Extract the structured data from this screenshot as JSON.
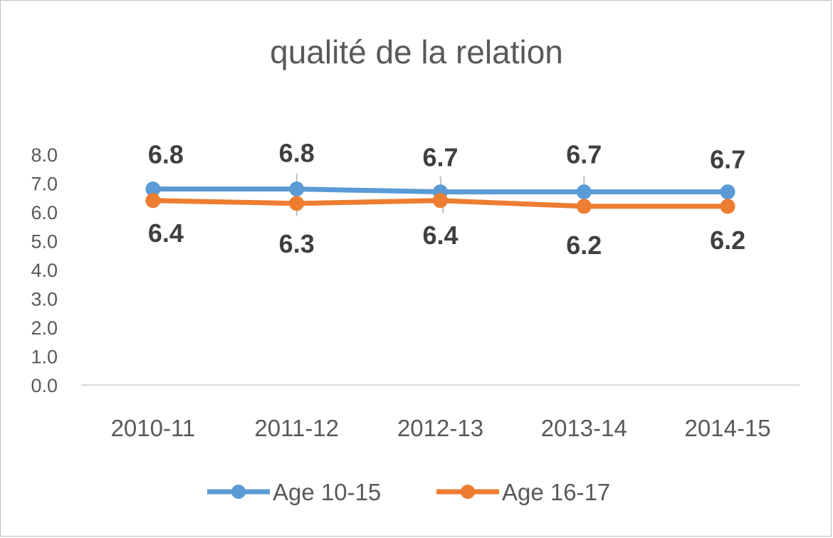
{
  "chart_data": {
    "type": "line",
    "title": "qualité de la relation",
    "categories": [
      "2010-11",
      "2011-12",
      "2012-13",
      "2013-14",
      "2014-15"
    ],
    "y_tick_labels": [
      "0.0",
      "1.0",
      "2.0",
      "3.0",
      "4.0",
      "5.0",
      "6.0",
      "7.0",
      "8.0"
    ],
    "ylim": [
      0,
      8
    ],
    "grid": false,
    "legend_position": "bottom",
    "series": [
      {
        "name": "Age 10-15",
        "color": "#5b9bd5",
        "values": [
          6.8,
          6.8,
          6.7,
          6.7,
          6.7
        ],
        "labels": [
          "6.8",
          "6.8",
          "6.7",
          "6.7",
          "6.7"
        ],
        "label_position": "above"
      },
      {
        "name": "Age 16-17",
        "color": "#ed7d31",
        "values": [
          6.4,
          6.3,
          6.4,
          6.2,
          6.2
        ],
        "labels": [
          "6.4",
          "6.3",
          "6.4",
          "6.2",
          "6.2"
        ],
        "label_position": "below"
      }
    ]
  }
}
